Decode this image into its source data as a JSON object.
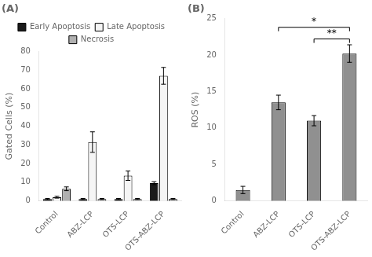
{
  "chart_data": [
    {
      "type": "bar",
      "title": "(A)",
      "ylabel": "Gated Cells (%)",
      "categories": [
        "Control",
        "ABZ-LCP",
        "OTS-LCP",
        "OTS-ABZ-LCP"
      ],
      "series": [
        {
          "name": "Early Apoptosis",
          "color": "#1a1a1a",
          "values": [
            1.0,
            1.0,
            1.0,
            9.5
          ],
          "errors": [
            0.3,
            0.3,
            0.3,
            0.8
          ]
        },
        {
          "name": "Late Apoptosis",
          "color": "#f5f5f5",
          "values": [
            2.0,
            31.5,
            13.5,
            67.0
          ],
          "errors": [
            0.5,
            5.5,
            2.5,
            4.5
          ]
        },
        {
          "name": "Necrosis",
          "color": "#b0b0b0",
          "values": [
            6.5,
            1.0,
            1.0,
            1.0
          ],
          "errors": [
            1.0,
            0.3,
            0.3,
            0.3
          ]
        }
      ],
      "ylim": [
        0,
        80
      ],
      "yticks": [
        0,
        10,
        20,
        30,
        40,
        50,
        60,
        70,
        80
      ],
      "grid": false,
      "legend": "top"
    },
    {
      "type": "bar",
      "title": "(B)",
      "ylabel": "ROS (%)",
      "categories": [
        "Control",
        "ABZ-LCP",
        "OTS-LCP",
        "OTS-ABZ-LCP"
      ],
      "values": [
        1.5,
        13.5,
        11.0,
        20.2
      ],
      "errors": [
        0.5,
        1.0,
        0.7,
        1.2
      ],
      "color": "#909090",
      "ylim": [
        0,
        25
      ],
      "yticks": [
        0,
        5,
        10,
        15,
        20,
        25
      ],
      "grid": false,
      "annotations": [
        {
          "x1": "ABZ-LCP",
          "x2": "OTS-ABZ-LCP",
          "y": 23.8,
          "label": "*"
        },
        {
          "x1": "OTS-LCP",
          "x2": "OTS-ABZ-LCP",
          "y": 22.2,
          "label": "**"
        }
      ]
    }
  ]
}
